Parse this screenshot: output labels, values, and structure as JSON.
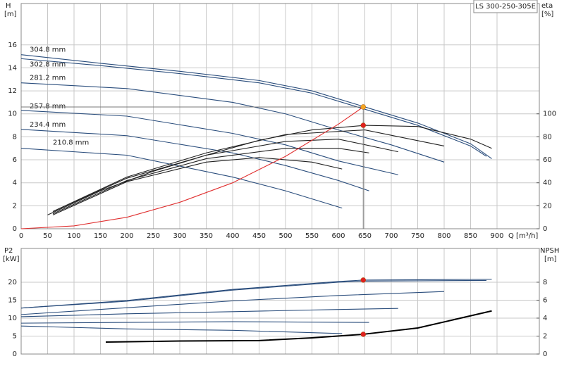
{
  "chart_data": [
    {
      "type": "line",
      "title": "LS 300-250-305E",
      "ylabel": "H",
      "ylabel_unit": "[m]",
      "y2label": "eta",
      "y2label_unit": "[%]",
      "xlabel": "Q [m³/h]",
      "xlim": [
        0,
        980
      ],
      "xticks": [
        0,
        50,
        100,
        150,
        200,
        250,
        300,
        350,
        400,
        450,
        500,
        550,
        600,
        650,
        700,
        750,
        800,
        850,
        900
      ],
      "show_xtick_labels": true,
      "ylim": [
        0,
        19.6
      ],
      "yticks": [
        0,
        2,
        4,
        6,
        8,
        10,
        12,
        14,
        16
      ],
      "y2lim": [
        0,
        196
      ],
      "y2ticks": [
        0,
        20,
        40,
        60,
        80,
        100
      ],
      "grid": true,
      "series": [
        {
          "name": "304.8 mm",
          "color": "#2a4d7c",
          "x": [
            0,
            150,
            300,
            450,
            550,
            650,
            750,
            850,
            890
          ],
          "values": [
            15.15,
            14.4,
            13.7,
            12.9,
            12.0,
            10.6,
            9.2,
            7.4,
            6.1
          ]
        },
        {
          "name": "302.8 mm",
          "color": "#2a4d7c",
          "x": [
            0,
            150,
            300,
            450,
            550,
            650,
            750,
            850,
            880
          ],
          "values": [
            14.8,
            14.2,
            13.5,
            12.7,
            11.8,
            10.4,
            9.0,
            7.2,
            6.3
          ]
        },
        {
          "name": "281.2 mm",
          "color": "#2a4d7c",
          "x": [
            0,
            200,
            400,
            500,
            600,
            700,
            800
          ],
          "values": [
            12.7,
            12.2,
            11.0,
            10.0,
            8.6,
            7.3,
            5.8
          ]
        },
        {
          "name": "257.8 mm",
          "color": "#2a4d7c",
          "x": [
            0,
            200,
            400,
            500,
            600,
            713
          ],
          "values": [
            10.3,
            9.8,
            8.3,
            7.3,
            5.9,
            4.7
          ]
        },
        {
          "name": "234.4 mm",
          "color": "#2a4d7c",
          "x": [
            0,
            200,
            400,
            500,
            600,
            658
          ],
          "values": [
            8.65,
            8.1,
            6.6,
            5.5,
            4.2,
            3.3
          ]
        },
        {
          "name": "210.8 mm",
          "color": "#2a4d7c",
          "x": [
            0,
            200,
            400,
            500,
            607
          ],
          "values": [
            7.0,
            6.4,
            4.5,
            3.3,
            1.8
          ]
        },
        {
          "color": "#222222",
          "axis": "y2",
          "x": [
            50,
            150,
            250,
            350,
            450,
            550,
            650,
            750,
            850,
            890
          ],
          "values": [
            12,
            33,
            50,
            64,
            77,
            86,
            90,
            89,
            78,
            70
          ]
        },
        {
          "color": "#222222",
          "axis": "y2",
          "x": [
            60,
            200,
            350,
            500,
            650,
            800
          ],
          "values": [
            15,
            45,
            66,
            82,
            86,
            72
          ]
        },
        {
          "color": "#222222",
          "axis": "y2",
          "x": [
            60,
            200,
            350,
            500,
            600,
            713
          ],
          "values": [
            15,
            44,
            64,
            76,
            78,
            67
          ]
        },
        {
          "color": "#222222",
          "axis": "y2",
          "x": [
            60,
            200,
            350,
            500,
            600,
            658
          ],
          "values": [
            13,
            42,
            61,
            70,
            70,
            66
          ]
        },
        {
          "color": "#222222",
          "axis": "y2",
          "x": [
            60,
            200,
            350,
            450,
            550,
            607
          ],
          "values": [
            12,
            41,
            58,
            62,
            58,
            52
          ]
        },
        {
          "color": "#e03030",
          "x": [
            0,
            100,
            200,
            300,
            400,
            500,
            600,
            647
          ],
          "values": [
            0,
            0.25,
            1.0,
            2.3,
            4.0,
            6.3,
            9.1,
            10.6
          ]
        }
      ],
      "markers": [
        {
          "x": 647,
          "y": 10.6,
          "color": "#f5a623",
          "guides": true
        },
        {
          "x": 647,
          "y": 90,
          "axis": "y2",
          "color": "#e02020"
        }
      ]
    },
    {
      "type": "line",
      "ylabel": "P2",
      "ylabel_unit": "[kW]",
      "y2label": "NPSH",
      "y2label_unit": "[m]",
      "xlim": [
        0,
        980
      ],
      "xticks": [
        0,
        50,
        100,
        150,
        200,
        250,
        300,
        350,
        400,
        450,
        500,
        550,
        600,
        650,
        700,
        750,
        800,
        850,
        900
      ],
      "show_xtick_labels": false,
      "ylim": [
        0,
        29.4
      ],
      "yticks": [
        0,
        5,
        10,
        15,
        20
      ],
      "y2lim": [
        0,
        11.76
      ],
      "y2ticks": [
        0,
        2,
        4,
        6,
        8
      ],
      "grid": true,
      "series": [
        {
          "color": "#2a4d7c",
          "x": [
            0,
            200,
            400,
            600,
            647,
            890
          ],
          "values": [
            12.8,
            14.9,
            18.0,
            20.2,
            20.6,
            20.8
          ]
        },
        {
          "color": "#2a4d7c",
          "x": [
            0,
            200,
            400,
            600,
            647,
            880
          ],
          "values": [
            12.8,
            14.7,
            17.8,
            20.0,
            20.3,
            20.5
          ]
        },
        {
          "color": "#2a4d7c",
          "x": [
            0,
            200,
            400,
            600,
            800
          ],
          "values": [
            11.0,
            12.9,
            14.8,
            16.3,
            17.4
          ]
        },
        {
          "color": "#2a4d7c",
          "x": [
            0,
            200,
            400,
            600,
            713
          ],
          "values": [
            10.4,
            11.2,
            11.8,
            12.4,
            12.7
          ]
        },
        {
          "color": "#2a4d7c",
          "x": [
            0,
            200,
            400,
            658
          ],
          "values": [
            8.6,
            8.8,
            9.0,
            8.8
          ]
        },
        {
          "color": "#2a4d7c",
          "x": [
            0,
            200,
            400,
            607
          ],
          "values": [
            7.8,
            7.0,
            6.6,
            5.7
          ]
        },
        {
          "color": "#000000",
          "axis": "y2",
          "width": 2,
          "x": [
            160,
            300,
            450,
            550,
            647,
            750,
            890
          ],
          "values": [
            1.33,
            1.45,
            1.5,
            1.8,
            2.2,
            2.9,
            4.8
          ]
        }
      ],
      "markers": [
        {
          "x": 647,
          "y": 20.6,
          "color": "#e02020"
        },
        {
          "x": 647,
          "y": 2.2,
          "axis": "y2",
          "color": "#e02020"
        }
      ]
    }
  ]
}
